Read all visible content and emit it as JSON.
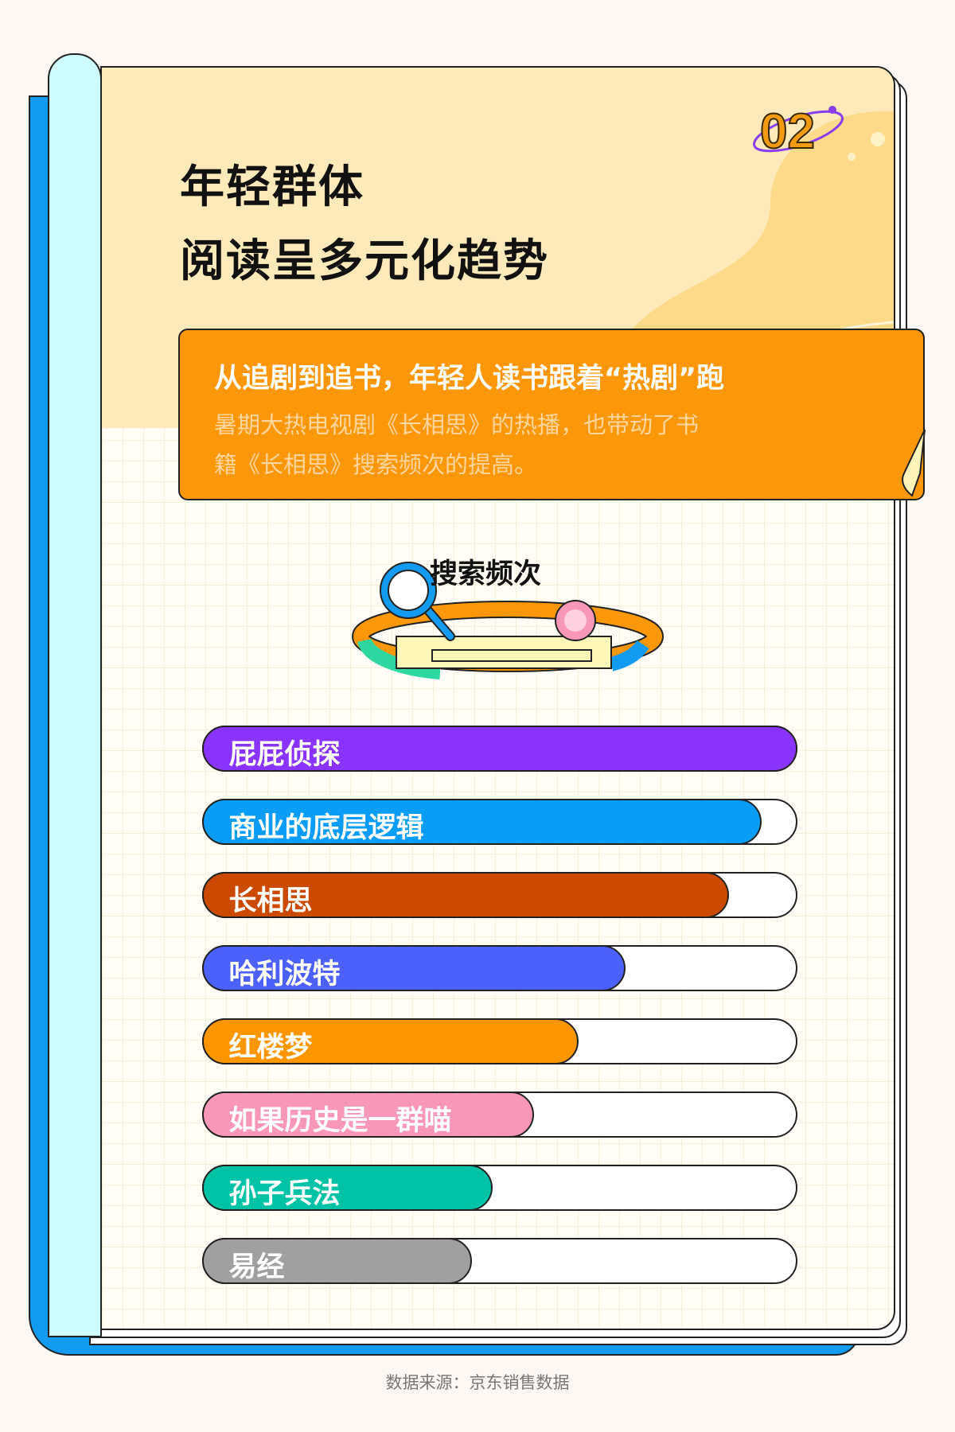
{
  "badge_number": "02",
  "title": {
    "line1": "年轻群体",
    "line2": "阅读呈多元化趋势"
  },
  "callout": {
    "heading": "从追剧到追书，年轻人读书跟着“热剧”跑",
    "body_line1": "暑期大热电视剧《长相思》的热播，也带动了书",
    "body_line2": "籍《长相思》搜索频次的提高。"
  },
  "chart_data": {
    "type": "bar",
    "orientation": "horizontal",
    "title": "搜索频次",
    "categories": [
      "屁屁侦探",
      "商业的底层逻辑",
      "长相思",
      "哈利波特",
      "红楼梦",
      "如果历史是一群喵",
      "孙子兵法",
      "易经"
    ],
    "values": [
      1.0,
      0.94,
      0.885,
      0.71,
      0.63,
      0.555,
      0.485,
      0.45
    ],
    "value_unit": "fraction of maximum (unlabeled)",
    "colors": [
      "#8a33fc",
      "#0a9df8",
      "#cc4a00",
      "#4c60fb",
      "#fc9600",
      "#f897b8",
      "#00c2a6",
      "#a0a0a0"
    ]
  },
  "source": "数据来源：京东销售数据"
}
